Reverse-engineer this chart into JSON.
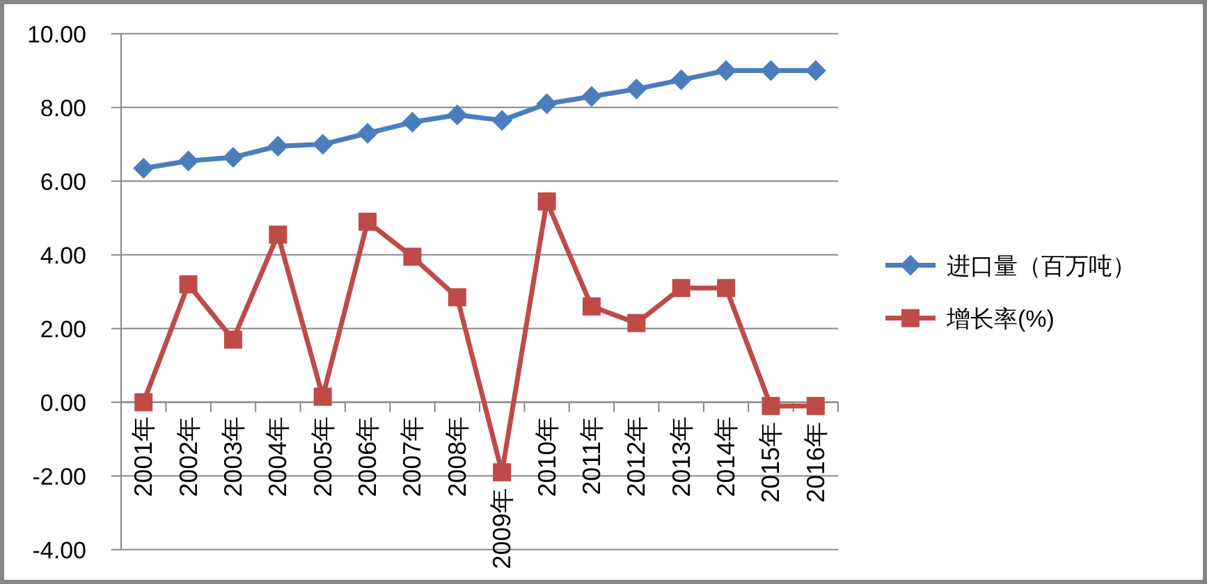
{
  "chart_data": {
    "type": "line",
    "categories": [
      "2001年",
      "2002年",
      "2003年",
      "2004年",
      "2005年",
      "2006年",
      "2007年",
      "2008年",
      "2009年",
      "2010年",
      "2011年",
      "2012年",
      "2013年",
      "2014年",
      "2015年",
      "2016年"
    ],
    "series": [
      {
        "name": "进口量（百万吨）",
        "color": "#4a7ebb",
        "marker": "diamond",
        "values": [
          6.35,
          6.55,
          6.65,
          6.95,
          7.0,
          7.3,
          7.6,
          7.8,
          7.65,
          8.1,
          8.3,
          8.5,
          8.75,
          9.0,
          9.0,
          9.0
        ]
      },
      {
        "name": "增长率(%)",
        "color": "#be4b48",
        "marker": "square",
        "values": [
          0.0,
          3.2,
          1.7,
          4.55,
          0.15,
          4.9,
          3.95,
          2.85,
          -1.9,
          5.45,
          2.6,
          2.15,
          3.1,
          3.1,
          -0.1,
          -0.1
        ]
      }
    ],
    "ylim": [
      -4,
      10
    ],
    "yticks": [
      {
        "value": -4,
        "label": "-4.00"
      },
      {
        "value": -2,
        "label": "-2.00"
      },
      {
        "value": 0,
        "label": "0.00"
      },
      {
        "value": 2,
        "label": "2.00"
      },
      {
        "value": 4,
        "label": "4.00"
      },
      {
        "value": 6,
        "label": "6.00"
      },
      {
        "value": 8,
        "label": "8.00"
      },
      {
        "value": 10,
        "label": "10.00"
      }
    ],
    "grid": "y",
    "legend": "right"
  }
}
